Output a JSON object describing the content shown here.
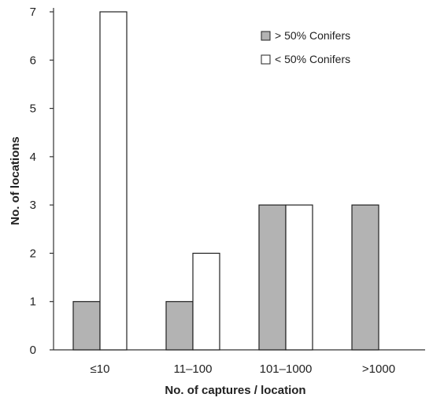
{
  "chart_data": {
    "type": "bar",
    "title": "",
    "xlabel": "No. of captures / location",
    "ylabel": "No. of locations",
    "categories": [
      "≤10",
      "11–100",
      "101–1000",
      ">1000"
    ],
    "series": [
      {
        "name": "> 50% Conifers",
        "values": [
          1,
          1,
          3,
          3
        ],
        "color": "#b3b3b3"
      },
      {
        "name": "< 50% Conifers",
        "values": [
          7,
          2,
          3,
          0
        ],
        "color": "#ffffff"
      }
    ],
    "ylim": [
      0,
      7
    ],
    "yticks": [
      0,
      1,
      2,
      3,
      4,
      5,
      6,
      7
    ],
    "grid": false,
    "legend": "top-right"
  }
}
